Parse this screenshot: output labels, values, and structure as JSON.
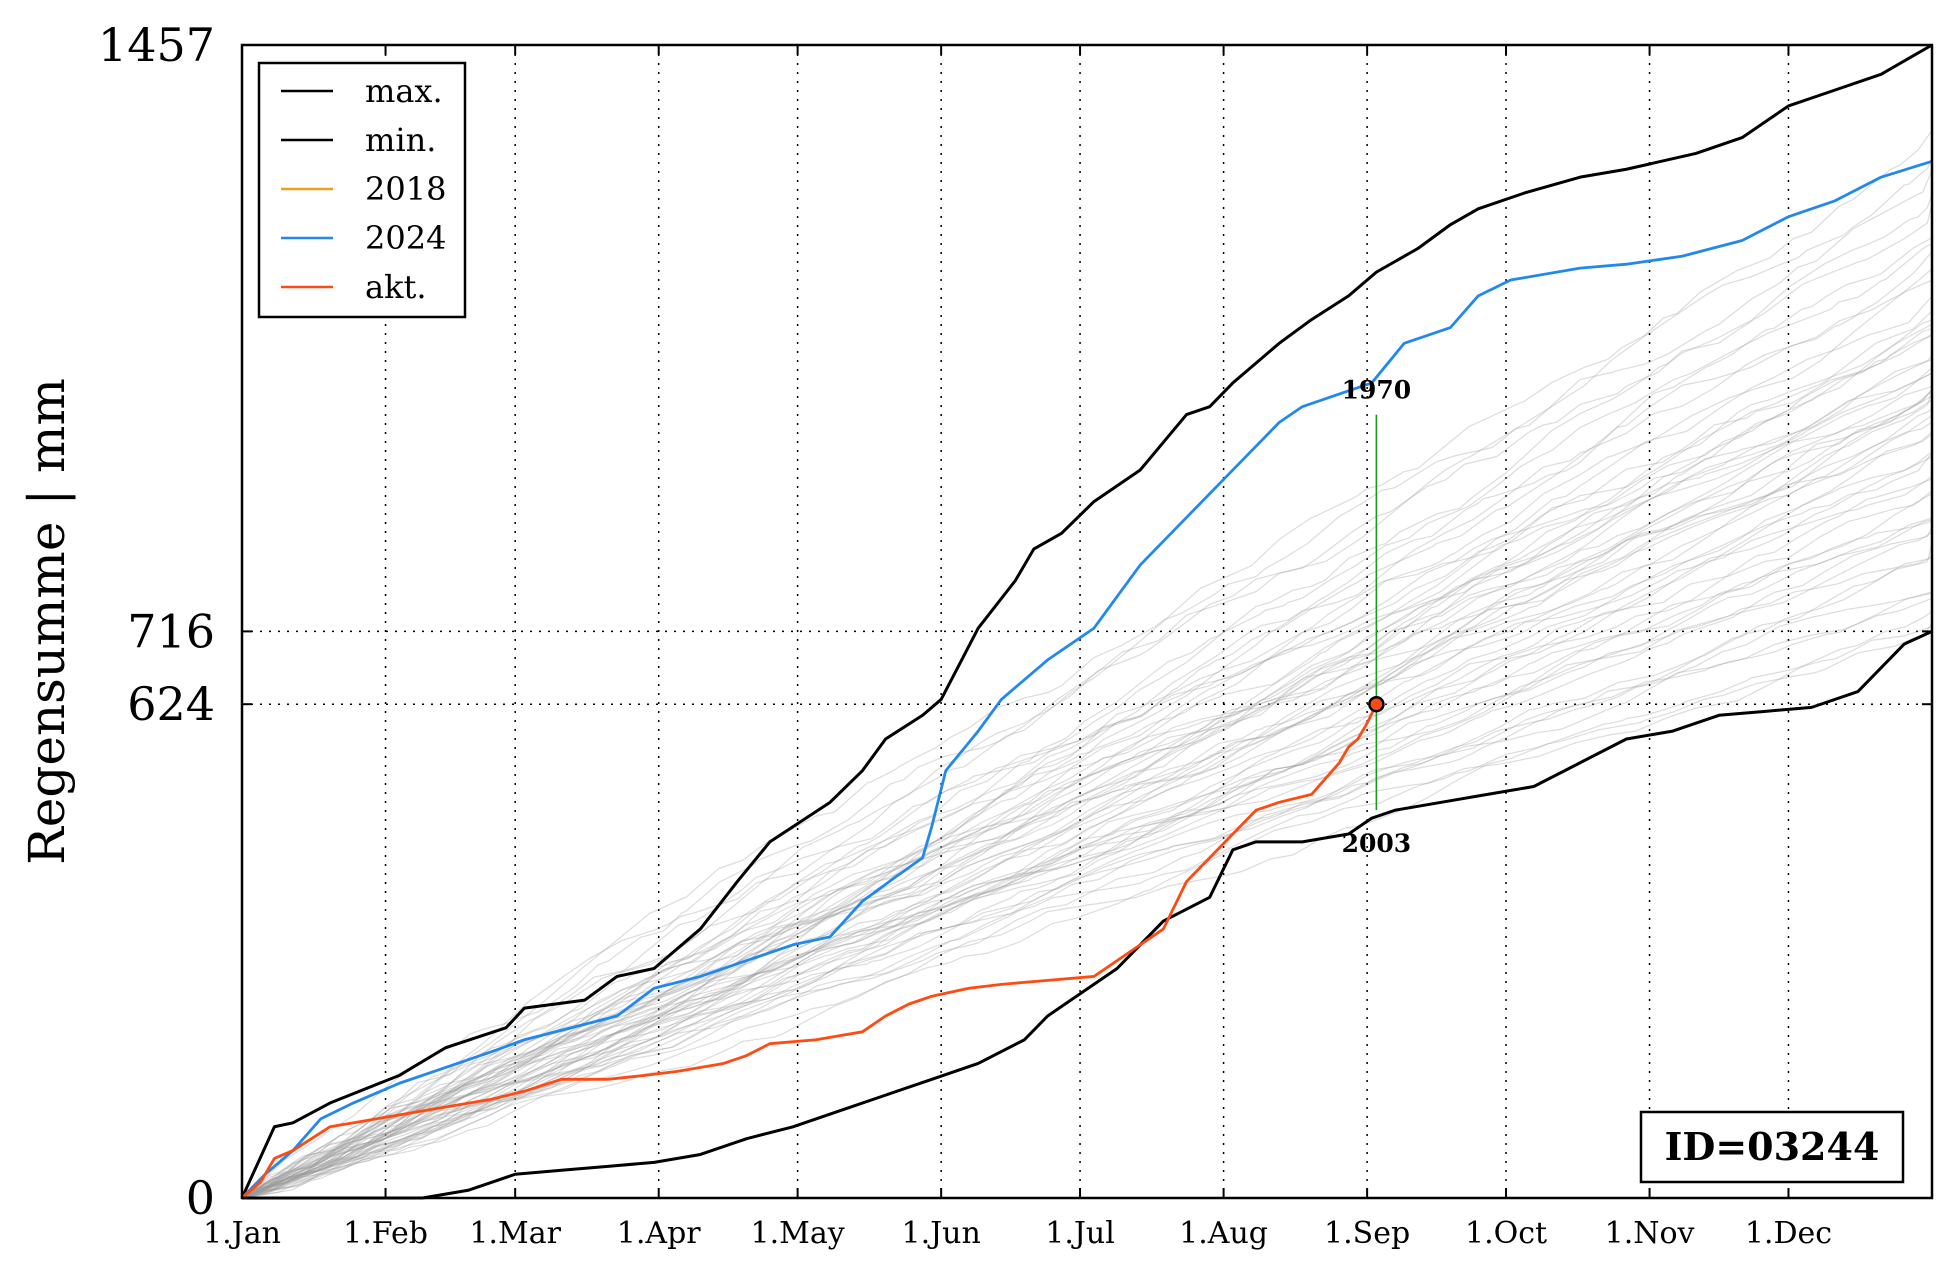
{
  "chart_data": {
    "type": "line",
    "ylabel": "Regensumme | mm",
    "ylim": [
      0,
      1457
    ],
    "xlim": [
      1,
      366
    ],
    "grid": "dotted",
    "x_ticks": [
      {
        "day": 1,
        "label": "1.Jan"
      },
      {
        "day": 32,
        "label": "1.Feb"
      },
      {
        "day": 60,
        "label": "1.Mar"
      },
      {
        "day": 91,
        "label": "1.Apr"
      },
      {
        "day": 121,
        "label": "1.May"
      },
      {
        "day": 152,
        "label": "1.Jun"
      },
      {
        "day": 182,
        "label": "1.Jul"
      },
      {
        "day": 213,
        "label": "1.Aug"
      },
      {
        "day": 244,
        "label": "1.Sep"
      },
      {
        "day": 274,
        "label": "1.Oct"
      },
      {
        "day": 305,
        "label": "1.Nov"
      },
      {
        "day": 335,
        "label": "1.Dec"
      }
    ],
    "y_ticks": [
      {
        "value": 0,
        "label": "0"
      },
      {
        "value": 624,
        "label": "624"
      },
      {
        "value": 716,
        "label": "716"
      },
      {
        "value": 1457,
        "label": "1457"
      }
    ],
    "legend_position": "top-left",
    "series": [
      {
        "name": "max.",
        "color": "#000000",
        "x": [
          1,
          8,
          12,
          20,
          35,
          45,
          58,
          62,
          75,
          82,
          90,
          100,
          108,
          115,
          128,
          135,
          140,
          148,
          152,
          160,
          168,
          172,
          178,
          185,
          195,
          205,
          210,
          215,
          225,
          232,
          240,
          246,
          255,
          262,
          268,
          278,
          290,
          300,
          315,
          325,
          335,
          345,
          355,
          366
        ],
        "y": [
          0,
          90,
          95,
          120,
          155,
          190,
          215,
          240,
          250,
          280,
          290,
          340,
          400,
          450,
          500,
          540,
          580,
          610,
          630,
          720,
          780,
          820,
          840,
          880,
          920,
          990,
          1000,
          1030,
          1080,
          1110,
          1140,
          1170,
          1200,
          1230,
          1250,
          1270,
          1290,
          1300,
          1320,
          1340,
          1380,
          1400,
          1420,
          1457
        ]
      },
      {
        "name": "min.",
        "color": "#000000",
        "x": [
          1,
          10,
          20,
          30,
          40,
          50,
          55,
          60,
          70,
          80,
          90,
          100,
          110,
          120,
          130,
          140,
          150,
          160,
          170,
          175,
          180,
          190,
          200,
          210,
          215,
          220,
          230,
          240,
          245,
          250,
          260,
          270,
          280,
          290,
          300,
          310,
          320,
          330,
          340,
          350,
          360,
          366
        ],
        "y": [
          0,
          0,
          0,
          0,
          0,
          10,
          20,
          30,
          35,
          40,
          45,
          55,
          75,
          90,
          110,
          130,
          150,
          170,
          200,
          230,
          250,
          290,
          350,
          380,
          440,
          450,
          450,
          460,
          480,
          490,
          500,
          510,
          520,
          550,
          580,
          590,
          610,
          615,
          620,
          640,
          700,
          716
        ]
      },
      {
        "name": "2018",
        "color": "#f0a020",
        "x": [],
        "y": []
      },
      {
        "name": "2024",
        "color": "#2288ee",
        "x": [
          1,
          6,
          12,
          18,
          25,
          35,
          45,
          55,
          62,
          72,
          82,
          90,
          100,
          110,
          120,
          128,
          135,
          142,
          148,
          150,
          153,
          160,
          165,
          175,
          185,
          195,
          205,
          215,
          225,
          230,
          240,
          245,
          252,
          262,
          268,
          275,
          290,
          300,
          312,
          325,
          335,
          345,
          355,
          366
        ],
        "y": [
          0,
          30,
          60,
          100,
          120,
          145,
          165,
          185,
          200,
          215,
          230,
          265,
          280,
          300,
          320,
          330,
          375,
          405,
          430,
          470,
          540,
          590,
          630,
          680,
          720,
          800,
          860,
          920,
          980,
          1000,
          1020,
          1030,
          1080,
          1100,
          1140,
          1160,
          1175,
          1180,
          1190,
          1210,
          1240,
          1260,
          1290,
          1310
        ]
      },
      {
        "name": "akt.",
        "color": "#ff4a12",
        "x": [
          1,
          5,
          8,
          12,
          20,
          25,
          35,
          45,
          55,
          62,
          70,
          80,
          88,
          95,
          105,
          110,
          115,
          125,
          130,
          135,
          140,
          145,
          150,
          158,
          165,
          175,
          185,
          190,
          195,
          200,
          205,
          210,
          215,
          220,
          225,
          232,
          235,
          238,
          240,
          242,
          244,
          246
        ],
        "y": [
          0,
          20,
          50,
          60,
          90,
          95,
          105,
          115,
          125,
          135,
          150,
          150,
          155,
          160,
          170,
          180,
          195,
          200,
          205,
          210,
          230,
          245,
          255,
          265,
          270,
          275,
          280,
          300,
          320,
          340,
          400,
          430,
          460,
          490,
          500,
          510,
          530,
          550,
          570,
          580,
          600,
          624
        ]
      }
    ],
    "marker": {
      "x": 246,
      "y": 624
    },
    "annotations": [
      {
        "label": "1970",
        "x": 246,
        "y": 1000
      },
      {
        "label": "2003",
        "x": 246,
        "y": 480
      }
    ],
    "id_box": "ID=03244"
  }
}
